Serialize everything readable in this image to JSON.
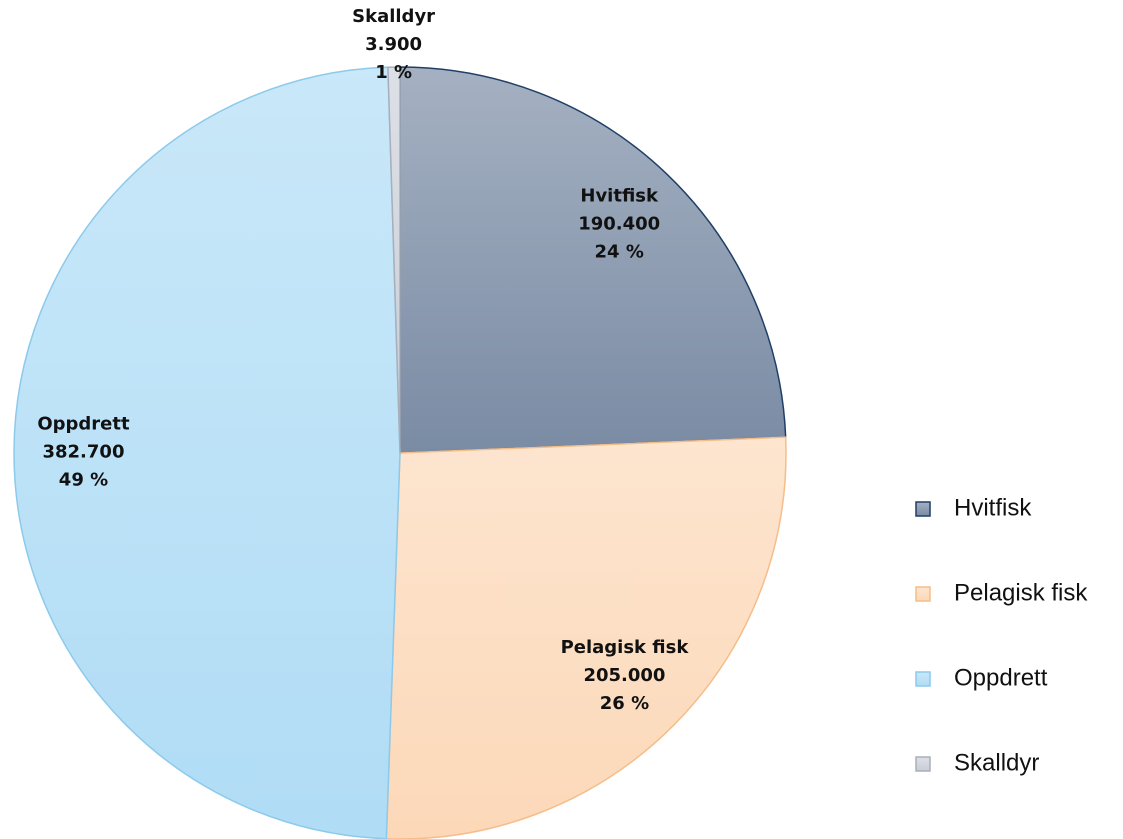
{
  "chart_data": {
    "type": "pie",
    "categories": [
      "Hvitfisk",
      "Pelagisk fisk",
      "Oppdrett",
      "Skalldyr"
    ],
    "values": [
      190400,
      205000,
      382700,
      3900
    ],
    "value_labels": [
      "190.400",
      "205.000",
      "382.700",
      "3.900"
    ],
    "percent_labels": [
      "24 %",
      "26 %",
      "49 %",
      "1 %"
    ],
    "colors": [
      "#8d9bb1",
      "#fde0c6",
      "#bfe3f8",
      "#d3d7de"
    ],
    "legend": "right"
  }
}
